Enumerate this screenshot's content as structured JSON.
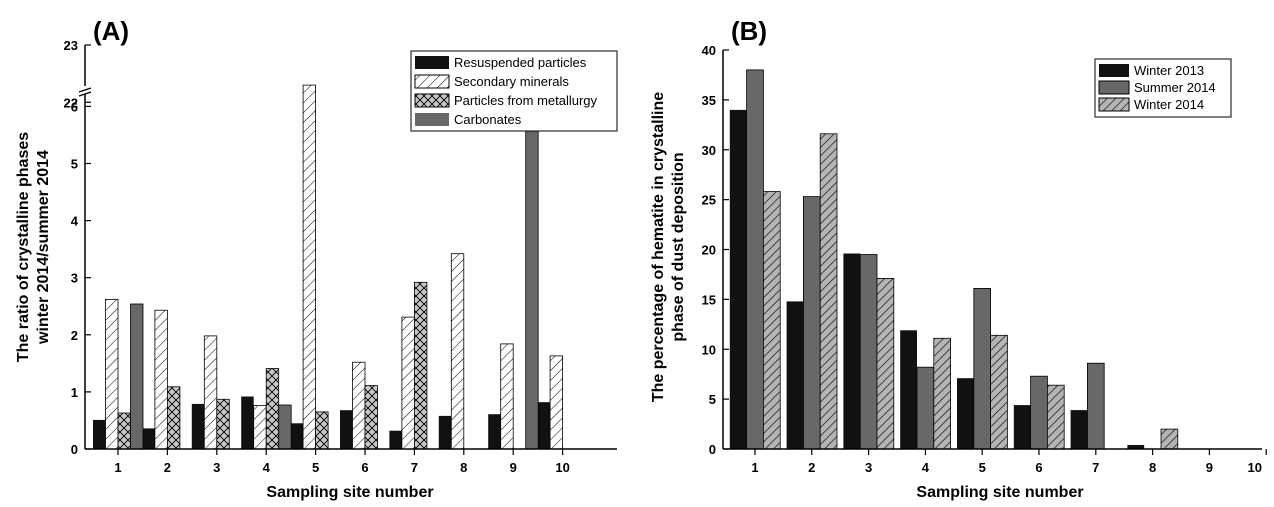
{
  "chart_data": [
    {
      "type": "bar",
      "panel_label": "(A)",
      "xlabel": "Sampling site number",
      "ylabel": [
        "The ratio of crystalline phases",
        "winter 2014/summer 2014"
      ],
      "categories": [
        "1",
        "2",
        "3",
        "4",
        "5",
        "6",
        "7",
        "8",
        "9",
        "10"
      ],
      "y_ticks_lower": [
        "0",
        "1",
        "2",
        "3",
        "4",
        "5",
        "6"
      ],
      "y_ticks_upper": [
        "22",
        "23"
      ],
      "axis_break": {
        "lower_range": [
          0,
          6.9
        ],
        "upper_range": [
          21.9,
          23
        ]
      },
      "legend_position": "top-right",
      "series": [
        {
          "name": "Resuspended particles",
          "fill": "solid-black",
          "values": [
            0.51,
            0.36,
            0.79,
            0.92,
            0.45,
            0.68,
            0.32,
            0.58,
            0.61,
            0.82
          ]
        },
        {
          "name": "Secondary minerals",
          "fill": "diagonal-hatch",
          "values": [
            2.62,
            2.43,
            1.98,
            0.76,
            22.3,
            1.52,
            2.31,
            3.42,
            1.84,
            1.63
          ]
        },
        {
          "name": "Particles from metallurgy",
          "fill": "crosshatch-gray",
          "values": [
            0.63,
            1.09,
            0.87,
            1.41,
            0.65,
            1.11,
            2.92,
            null,
            null,
            null
          ]
        },
        {
          "name": "Carbonates",
          "fill": "solid-gray",
          "values": [
            2.54,
            null,
            null,
            0.77,
            null,
            null,
            null,
            null,
            5.72,
            null
          ]
        }
      ]
    },
    {
      "type": "bar",
      "panel_label": "(B)",
      "xlabel": "Sampling site number",
      "ylabel": [
        "The percentage of hematite in crystalline",
        "phase of dust deposition"
      ],
      "categories": [
        "1",
        "2",
        "3",
        "4",
        "5",
        "6",
        "7",
        "8",
        "9",
        "10"
      ],
      "y_ticks": [
        "0",
        "5",
        "10",
        "15",
        "20",
        "25",
        "30",
        "35",
        "40"
      ],
      "ylim": [
        0,
        40
      ],
      "legend_position": "top-right",
      "series": [
        {
          "name": "Winter 2013",
          "fill": "solid-black",
          "values": [
            34.0,
            14.8,
            19.6,
            11.9,
            7.1,
            4.4,
            3.9,
            0.4,
            null,
            null
          ]
        },
        {
          "name": "Summer 2014",
          "fill": "solid-gray",
          "values": [
            38.0,
            25.3,
            19.5,
            8.2,
            16.1,
            7.3,
            8.6,
            null,
            null,
            null
          ]
        },
        {
          "name": "Winter 2014",
          "fill": "diagonal-hatch-gray",
          "values": [
            25.8,
            31.6,
            17.1,
            11.1,
            11.4,
            6.4,
            null,
            2.0,
            null,
            null
          ]
        }
      ]
    }
  ]
}
